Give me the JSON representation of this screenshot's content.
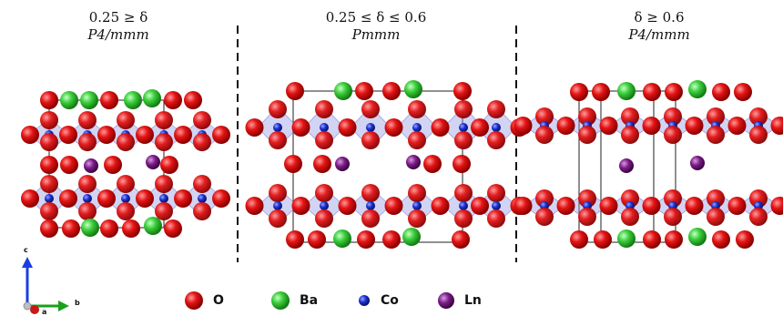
{
  "panels": [
    {
      "condition": "0.25 ≥ δ",
      "space_group": "P4/mmm"
    },
    {
      "condition": "0.25 ≤ δ ≤ 0.6",
      "space_group": "Pmmm"
    },
    {
      "condition": "δ ≥ 0.6",
      "space_group": "P4/mmm"
    }
  ],
  "legend": [
    {
      "label": "O",
      "color": "#e01010"
    },
    {
      "label": "Ba",
      "color": "#3ccf3c"
    },
    {
      "label": "Co",
      "color": "#1a2fd0"
    },
    {
      "label": "Ln",
      "color": "#7a1a86"
    }
  ],
  "axes": {
    "c": "c",
    "b": "b",
    "a": "a"
  },
  "colors": {
    "octahedra": "#8a8ee0",
    "cell_edge": "#222222",
    "separator": "#111111"
  }
}
